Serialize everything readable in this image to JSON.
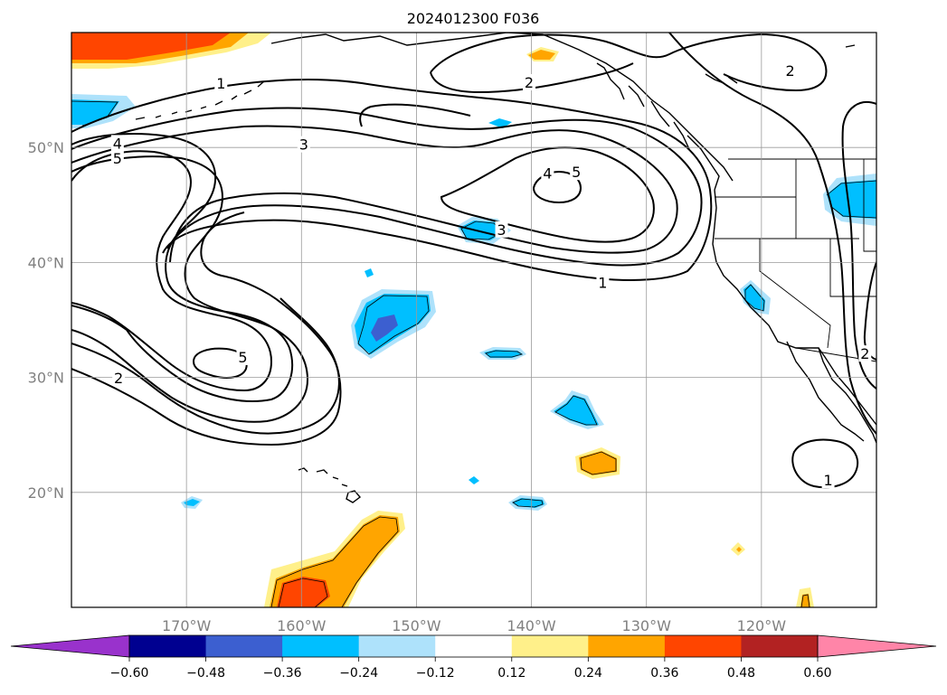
{
  "title": "2024012300 F036",
  "map": {
    "lon_range": [
      -180,
      -110
    ],
    "lat_range": [
      10,
      60
    ],
    "gridlines": true,
    "lon_ticks": [
      {
        "lon": -170,
        "label": "170°W"
      },
      {
        "lon": -160,
        "label": "160°W"
      },
      {
        "lon": -150,
        "label": "150°W"
      },
      {
        "lon": -140,
        "label": "140°W"
      },
      {
        "lon": -130,
        "label": "130°W"
      },
      {
        "lon": -120,
        "label": "120°W"
      }
    ],
    "lat_ticks": [
      {
        "lat": 20,
        "label": "20°N"
      },
      {
        "lat": 30,
        "label": "30°N"
      },
      {
        "lat": 40,
        "label": "40°N"
      },
      {
        "lat": 50,
        "label": "50°N"
      }
    ],
    "contour_labels": [
      {
        "text": "1",
        "lon": -167,
        "lat": 55.5
      },
      {
        "text": "2",
        "lon": -140.2,
        "lat": 55.6
      },
      {
        "text": "2",
        "lon": -117.5,
        "lat": 56.6
      },
      {
        "text": "3",
        "lon": -159.8,
        "lat": 50.2
      },
      {
        "text": "4",
        "lon": -176,
        "lat": 50.3
      },
      {
        "text": "5",
        "lon": -176,
        "lat": 49.0
      },
      {
        "text": "4",
        "lon": -138.6,
        "lat": 47.7
      },
      {
        "text": "5",
        "lon": -136.1,
        "lat": 47.8
      },
      {
        "text": "3",
        "lon": -142.6,
        "lat": 42.8
      },
      {
        "text": "1",
        "lon": -133.8,
        "lat": 38.2
      },
      {
        "text": "5",
        "lon": -165.1,
        "lat": 31.7
      },
      {
        "text": "2",
        "lon": -175.9,
        "lat": 29.9
      },
      {
        "text": "1",
        "lon": -114.2,
        "lat": 21.0
      },
      {
        "text": "2",
        "lon": -111,
        "lat": 32
      }
    ]
  },
  "colorbar": {
    "ticks": [
      "−0.60",
      "−0.48",
      "−0.36",
      "−0.24",
      "−0.12",
      "0.12",
      "0.24",
      "0.36",
      "0.48",
      "0.60"
    ],
    "under_color": "#9932cc",
    "colors": [
      "#000090",
      "#3c5fd0",
      "#00bfff",
      "#aee2fb",
      "#ffffff",
      "#fff08a",
      "#ffa500",
      "#ff4500",
      "#b22222"
    ],
    "over_color": "#ff85a8",
    "extend": "both"
  }
}
